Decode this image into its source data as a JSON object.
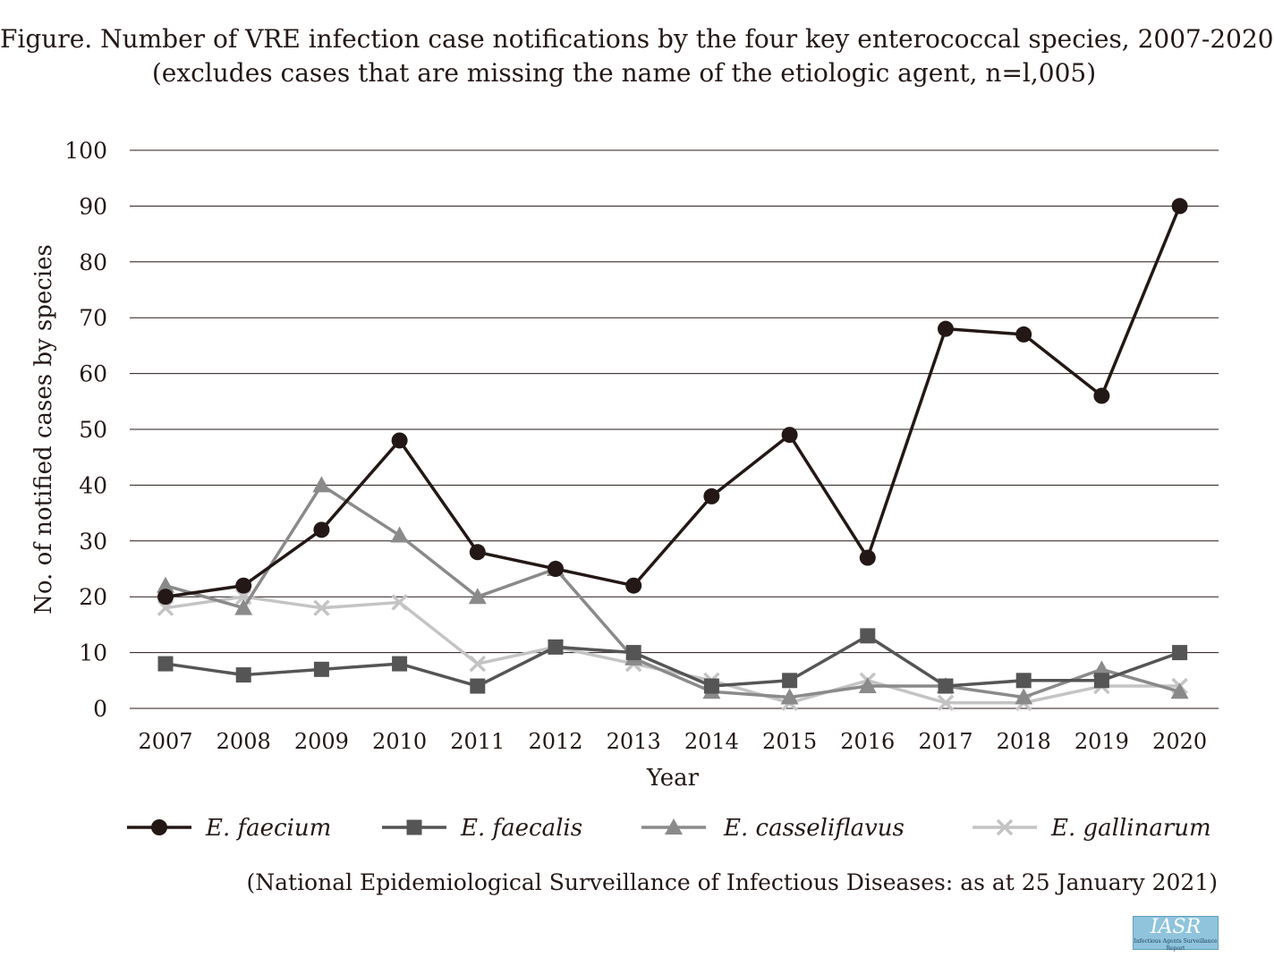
{
  "title_line1": "Figure. Number of VRE infection case notifications by the four key enterococcal species, 2007-2020",
  "title_line2": "(excludes cases that are missing the name of the etiologic agent, n=l,005)",
  "source_note": "(National Epidemiological Surveillance of Infectious Diseases: as at 25 January 2021)",
  "logo": {
    "main": "IASR",
    "sub": "Infectious Agents Surveillance Report"
  },
  "colors": {
    "faecium": "#231815",
    "faecalis": "#555555",
    "casseliflavus": "#8a8a8a",
    "gallinarum": "#c4c4c4",
    "grid": "#231815",
    "logo_bg": "#8fc4dc"
  },
  "chart_data": {
    "type": "line",
    "title": "Figure. Number of VRE infection case notifications by the four key enterococcal species, 2007-2020",
    "xlabel": "Year",
    "ylabel": "No. of notified cases by species",
    "ylim": [
      0,
      100
    ],
    "yticks": [
      0,
      10,
      20,
      30,
      40,
      50,
      60,
      70,
      80,
      90,
      100
    ],
    "grid": true,
    "legend_position": "bottom",
    "categories": [
      "2007",
      "2008",
      "2009",
      "2010",
      "2011",
      "2012",
      "2013",
      "2014",
      "2015",
      "2016",
      "2017",
      "2018",
      "2019",
      "2020"
    ],
    "series": [
      {
        "name": "E. faecium",
        "key": "faecium",
        "marker": "circle",
        "values": [
          20,
          22,
          32,
          48,
          28,
          25,
          22,
          38,
          49,
          27,
          68,
          67,
          56,
          90
        ]
      },
      {
        "name": "E. faecalis",
        "key": "faecalis",
        "marker": "square",
        "values": [
          8,
          6,
          7,
          8,
          4,
          11,
          10,
          4,
          5,
          13,
          4,
          5,
          5,
          10
        ]
      },
      {
        "name": "E. casseliflavus",
        "key": "casseliflavus",
        "marker": "triangle",
        "values": [
          22,
          18,
          40,
          31,
          20,
          25,
          9,
          3,
          2,
          4,
          4,
          2,
          7,
          3
        ]
      },
      {
        "name": "E. gallinarum",
        "key": "gallinarum",
        "marker": "x",
        "values": [
          18,
          20,
          18,
          19,
          8,
          11,
          8,
          5,
          1,
          5,
          1,
          1,
          4,
          4
        ]
      }
    ]
  }
}
